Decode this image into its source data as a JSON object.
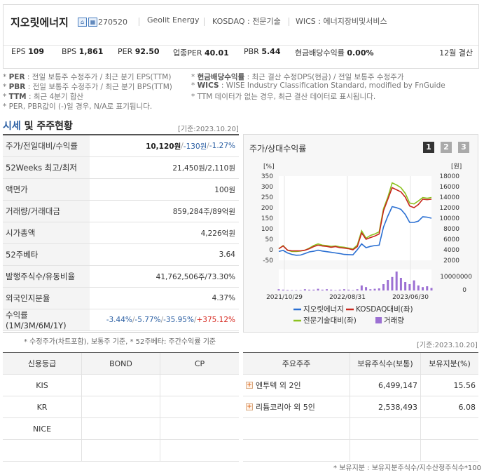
{
  "company": {
    "name": "지오릿에너지",
    "code": "270520",
    "english": "Geolit Energy",
    "market": "KOSDAQ : 전문기술",
    "wics": "WICS : 에너지장비및서비스",
    "icons": [
      "home-icon",
      "building-icon"
    ]
  },
  "metrics": [
    {
      "label": "EPS",
      "value": "109"
    },
    {
      "label": "BPS",
      "value": "1,861"
    },
    {
      "label": "PER",
      "value": "92.50"
    },
    {
      "label": "업종PER",
      "value": "40.01"
    },
    {
      "label": "PBR",
      "value": "5.44"
    },
    {
      "label": "현금배당수익률",
      "value": "0.00%"
    }
  ],
  "settle": "12월 결산",
  "notes": {
    "l1b": "PER",
    "l1": ": 전일 보통주 수정주가 / 최근 분기 EPS(TTM)",
    "l2b": "PBR",
    "l2": ": 전일 보통주 수정주가 / 최근 분기 BPS(TTM)",
    "l3b": "TTM",
    "l3": ": 최근 4분기 합산",
    "l4": "* PER, PBR값이 (-)일 경우, N/A로 표기됩니다.",
    "r1b": "현금배당수익률",
    "r1": ": 최근 결산 수정DPS(현금) / 전일 보통주 수정주가",
    "r2b": "WICS",
    "r2": ": WISE Industry Classification Standard, modified by FnGuide",
    "r3": "* TTM 데이터가 없는 경우, 최근 결산 데이터로 표시됩니다."
  },
  "market_section": {
    "title_a": "시세",
    "title_b": " 및 주주현황",
    "date": "[기준:2023.10.20]"
  },
  "quote_rows": [
    {
      "label": "주가/전일대비/수익률",
      "price": "10,120원",
      "change": "-130원",
      "ret": "-1.27%"
    },
    {
      "label": "52Weeks 최고/최저",
      "value": "21,450원/2,110원"
    },
    {
      "label": "액면가",
      "value": "100원"
    },
    {
      "label": "거래량/거래대금",
      "value": "859,284주/89억원"
    },
    {
      "label": "시가총액",
      "value": "4,226억원"
    },
    {
      "label": "52주베타",
      "value": "3.64"
    },
    {
      "label": "발행주식수/유동비율",
      "value": "41,762,506주/73.30%"
    },
    {
      "label": "외국인지분율",
      "value": "4.37%"
    },
    {
      "label": "수익률 (1M/3M/6M/1Y)",
      "r1": "-3.44%",
      "r2": "-5.77%",
      "r3": "-35.95%",
      "r4": "+375.12%"
    }
  ],
  "quote_note": "* 수정주가(차트포함), 보통주 기준, * 52주베타: 주간수익률 기준",
  "chart_panel": {
    "title": "주가/상대수익률",
    "pages": [
      "1",
      "2",
      "3"
    ]
  },
  "chart_data": {
    "type": "line",
    "x_tick_labels": [
      "2021/10/29",
      "2022/08/31",
      "2023/06/30"
    ],
    "left_unit": "[%]",
    "right_unit": "[원]",
    "left_ticks": [
      "350",
      "300",
      "250",
      "200",
      "150",
      "100",
      "50",
      "0",
      "-50"
    ],
    "right_ticks": [
      "18000",
      "16000",
      "14000",
      "12000",
      "10000",
      "8000",
      "6000",
      "4000",
      "2000"
    ],
    "vol_tick": "10000000",
    "vol_zero": "0",
    "left_ylim": [
      -50,
      350
    ],
    "right_ylim": [
      2000,
      18000
    ],
    "series": [
      {
        "name": "지오릿에너지",
        "color": "#2a6fd2",
        "values": [
          -8,
          -3,
          -15,
          -22,
          -26,
          -25,
          -18,
          -10,
          -7,
          -2,
          -6,
          -9,
          -12,
          -15,
          -18,
          -22,
          -23,
          -24,
          0,
          28,
          10,
          16,
          20,
          22,
          108,
          160,
          205,
          200,
          192,
          168,
          130,
          130,
          136,
          157,
          155,
          150
        ]
      },
      {
        "name": "KOSDAQ대비(좌)",
        "color": "#c8271d",
        "values": [
          5,
          18,
          -2,
          -5,
          -5,
          -5,
          -2,
          5,
          15,
          22,
          18,
          16,
          12,
          15,
          10,
          8,
          5,
          0,
          15,
          80,
          50,
          58,
          65,
          75,
          185,
          240,
          295,
          285,
          275,
          250,
          208,
          200,
          215,
          240,
          238,
          240
        ]
      },
      {
        "name": "전문기술대비(좌)",
        "color": "#8cc21f",
        "values": [
          5,
          20,
          -2,
          -8,
          -8,
          -6,
          -2,
          8,
          20,
          28,
          22,
          20,
          16,
          18,
          14,
          12,
          8,
          4,
          22,
          90,
          55,
          68,
          75,
          85,
          195,
          250,
          318,
          308,
          295,
          268,
          222,
          218,
          232,
          248,
          245,
          248
        ]
      },
      {
        "name": "거래량",
        "color": "#9c70d3",
        "type": "bar",
        "values": [
          0.3,
          0.2,
          0.15,
          0.1,
          0.1,
          0.1,
          0.3,
          0.2,
          0.2,
          0.4,
          0.2,
          0.3,
          0.2,
          0.1,
          0.2,
          0.3,
          0.2,
          0.1,
          0.3,
          1.2,
          0.8,
          0.3,
          0.4,
          0.5,
          1.5,
          2.5,
          3.2,
          4.5,
          3.0,
          2.0,
          1.5,
          2.4,
          1.2,
          0.8,
          1.0,
          0.6
        ]
      }
    ]
  },
  "credit": {
    "headers": [
      "신용등급",
      "BOND",
      "CP"
    ],
    "rows": [
      "KIS",
      "KR",
      "NICE",
      ""
    ]
  },
  "holders": {
    "date": "[기준:2023.10.20]",
    "headers": [
      "주요주주",
      "보유주식수(보통)",
      "보유지분(%)"
    ],
    "rows": [
      {
        "name": "엔투텍 외 2인",
        "shares": "6,499,147",
        "pct": "15.56"
      },
      {
        "name": "리튬코리아 외 5인",
        "shares": "2,538,493",
        "pct": "6.08"
      }
    ],
    "note": "* 보유지분 : 보유지분주식수/지수산정주식수*100"
  }
}
